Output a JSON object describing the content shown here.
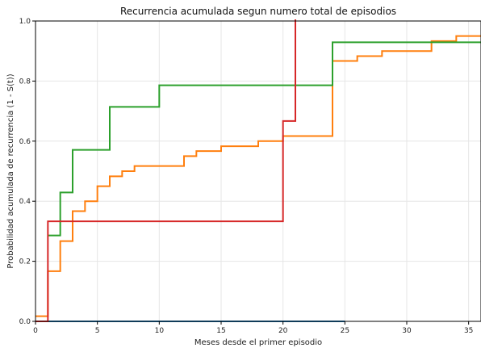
{
  "chart_data": {
    "type": "line",
    "step": true,
    "title": "Recurrencia acumulada segun numero total de episodios",
    "xlabel": "Meses desde el primer episodio",
    "ylabel": "Probabilidad acumulada de recurrencia (1 - S(t))",
    "xlim": [
      0,
      36
    ],
    "ylim": [
      0,
      1.0
    ],
    "xticks": [
      0,
      5,
      10,
      15,
      20,
      25,
      30,
      35
    ],
    "yticks": [
      0.0,
      0.2,
      0.4,
      0.6,
      0.8,
      1.0
    ],
    "xtick_labels": [
      "0",
      "5",
      "10",
      "15",
      "20",
      "25",
      "30",
      "35"
    ],
    "ytick_labels": [
      "0.0",
      "0.2",
      "0.4",
      "0.6",
      "0.8",
      "1.0"
    ],
    "grid": true,
    "legend": "none",
    "series": [
      {
        "color": "#1f77b4",
        "x": [
          0,
          25
        ],
        "y": [
          0,
          0
        ]
      },
      {
        "color": "#ff7f0e",
        "x": [
          0,
          1,
          2,
          3,
          4,
          5,
          6,
          7,
          8,
          12,
          13,
          15,
          18,
          20,
          24,
          26,
          28,
          32,
          34,
          36
        ],
        "y": [
          0.017,
          0.167,
          0.267,
          0.367,
          0.4,
          0.45,
          0.483,
          0.5,
          0.517,
          0.55,
          0.567,
          0.583,
          0.6,
          0.617,
          0.867,
          0.883,
          0.9,
          0.933,
          0.95,
          0.95
        ]
      },
      {
        "color": "#2ca02c",
        "x": [
          1,
          2,
          3,
          6,
          10,
          24,
          36
        ],
        "y": [
          0.286,
          0.429,
          0.571,
          0.714,
          0.786,
          0.929,
          0.929
        ]
      },
      {
        "color": "#d62728",
        "x": [
          0,
          1,
          20,
          21
        ],
        "y": [
          0,
          0.333,
          0.667,
          1.0
        ]
      }
    ]
  }
}
